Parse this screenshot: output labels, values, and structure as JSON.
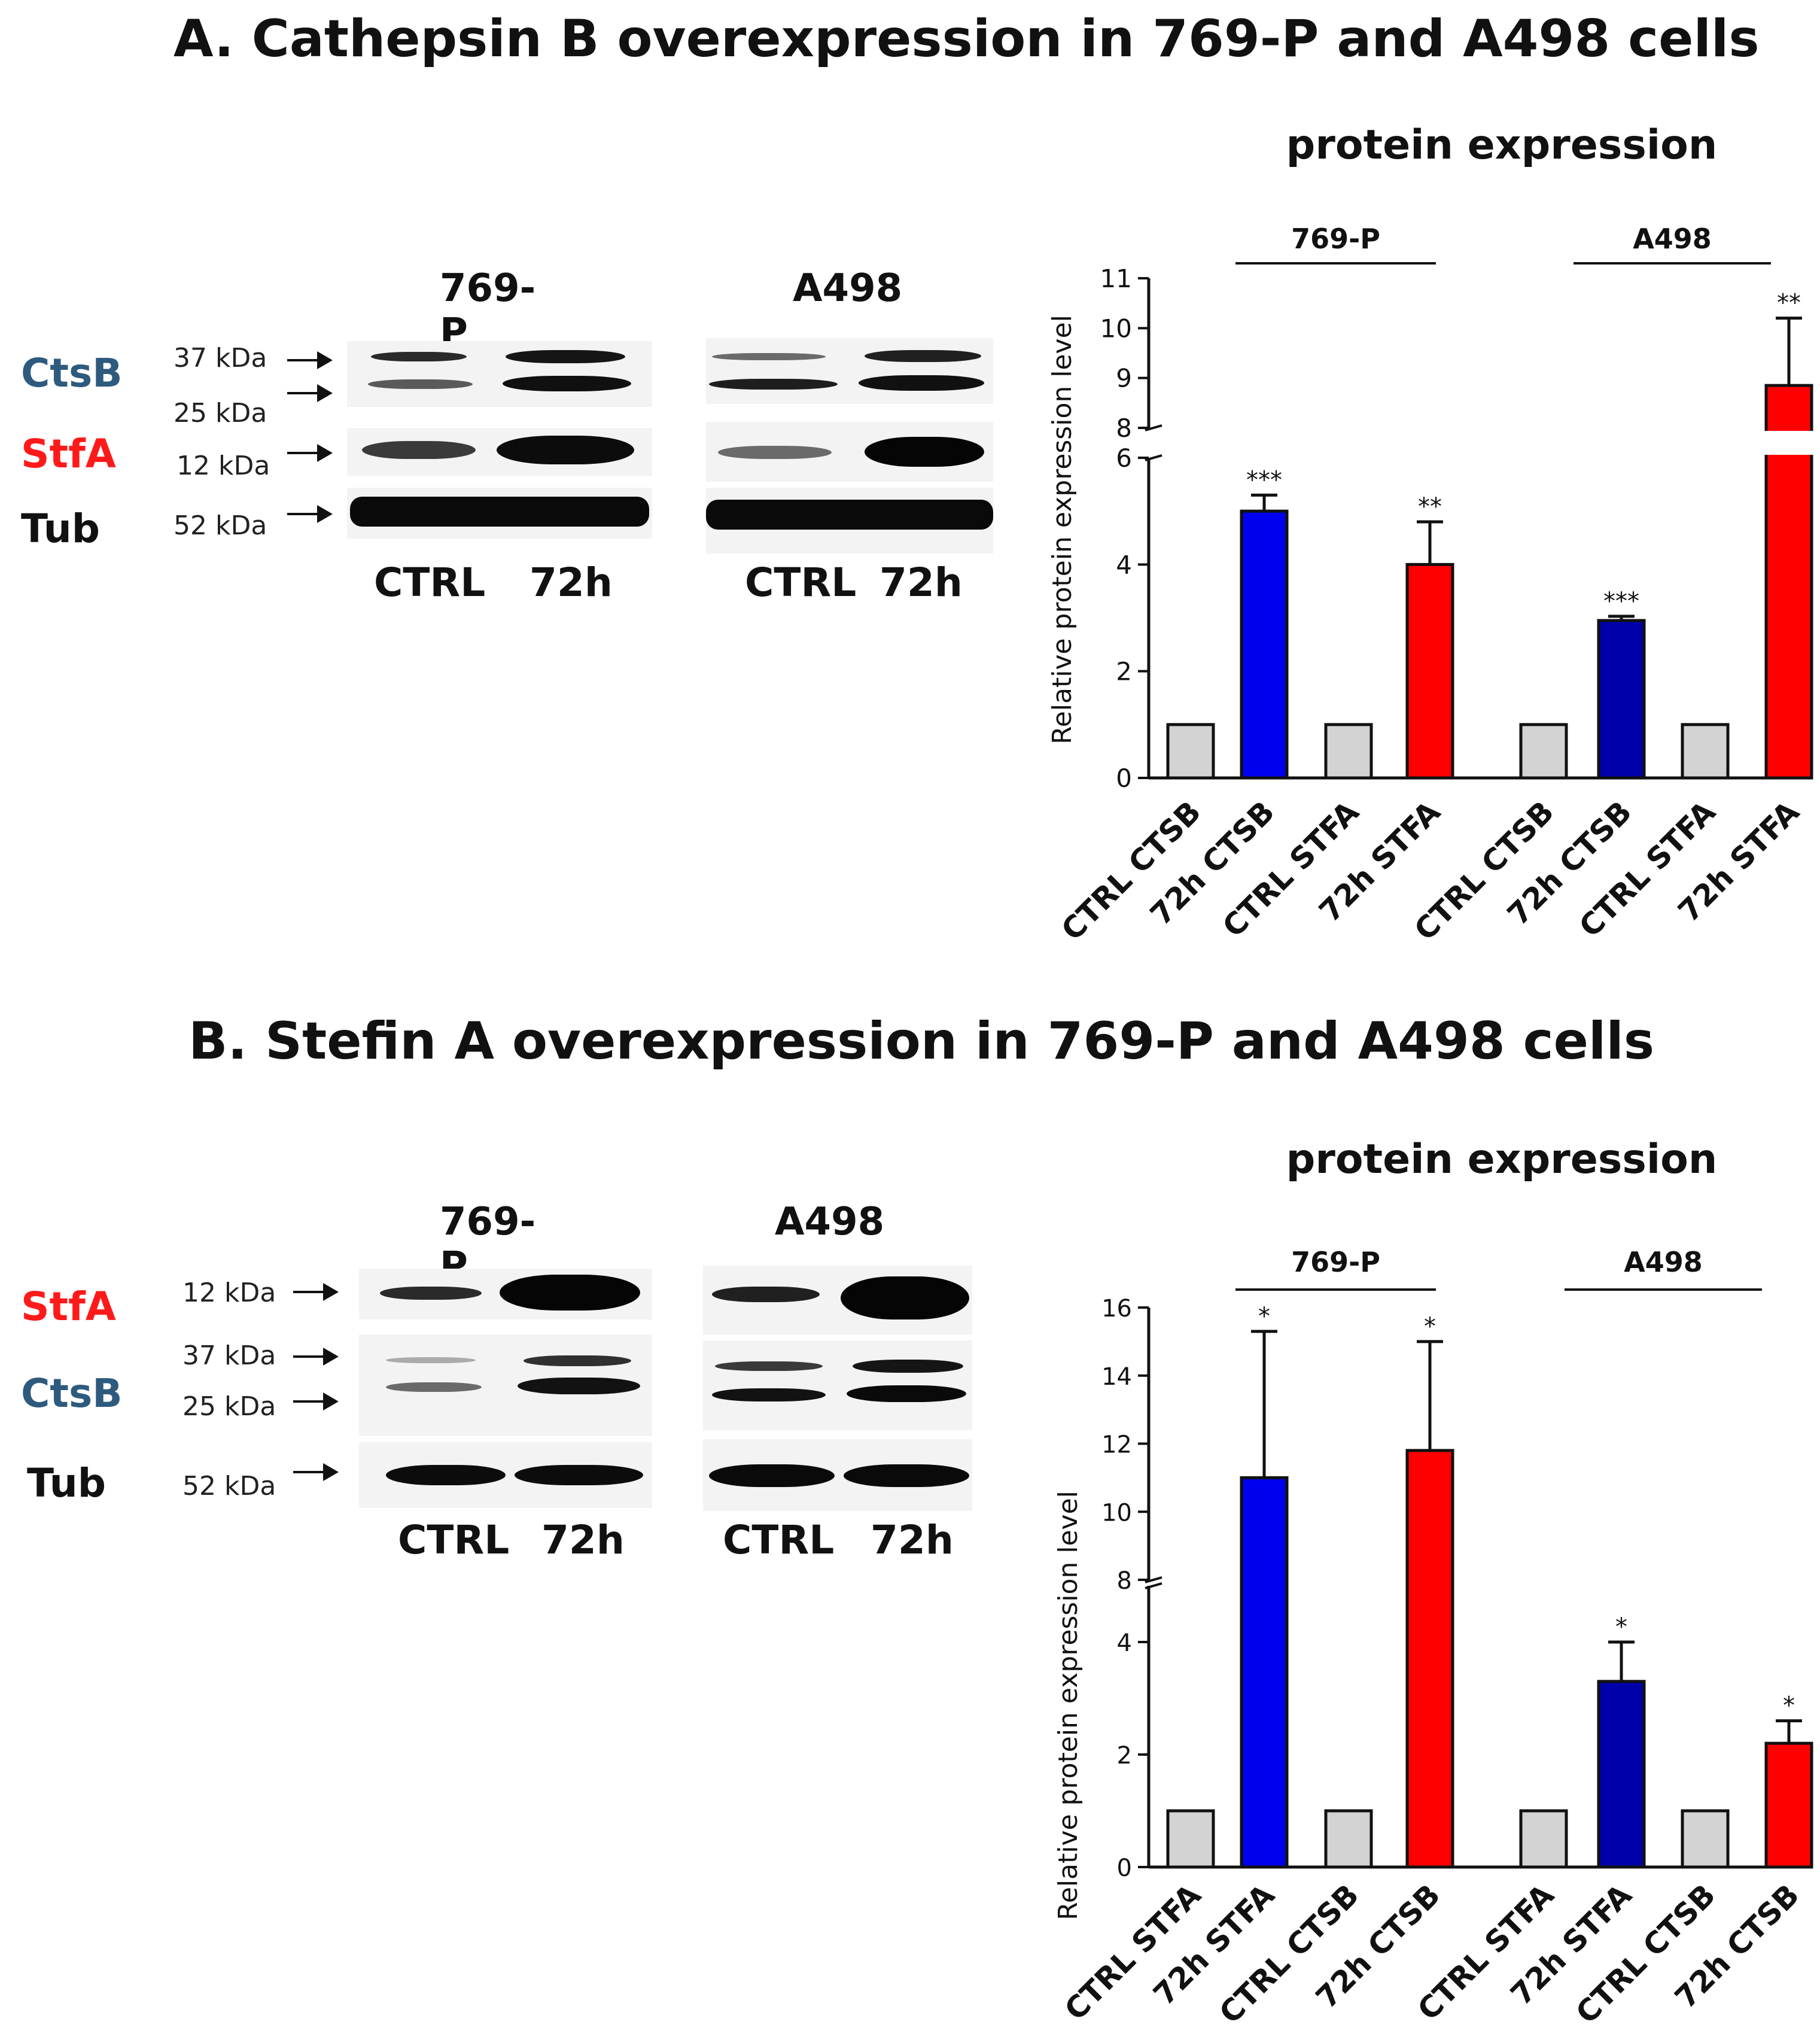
{
  "panel_a": {
    "title": "A. Cathepsin B overexpression in 769-P and A498 cells",
    "blot": {
      "cell_lines": [
        "769-P",
        "A498"
      ],
      "proteins": {
        "ctsb": "CtsB",
        "stfa": "StfA",
        "tub": "Tub"
      },
      "markers": [
        "37 kDa",
        "25 kDa",
        "12 kDa",
        "52 kDa"
      ],
      "lanes": [
        "CTRL",
        "72h"
      ]
    }
  },
  "panel_b": {
    "title": "B. Stefin A overexpression in 769-P and A498 cells",
    "blot": {
      "cell_lines": [
        "769-P",
        "A498"
      ],
      "proteins": {
        "stfa": "StfA",
        "ctsb": "CtsB",
        "tub": "Tub"
      },
      "markers": [
        "12 kDa",
        "37 kDa",
        "25 kDa",
        "52 kDa"
      ],
      "lanes": [
        "CTRL",
        "72h"
      ]
    }
  },
  "colors": {
    "ctsb_label": "#2e5a7e",
    "stfa_label": "#ff1a1a",
    "ctrl_bar": "#d3d3d3",
    "blue_bar": "#0000ee",
    "dark_blue_bar": "#0000aa",
    "red_bar": "#ff0000"
  },
  "chart_data": [
    {
      "type": "bar",
      "title": "protein expression",
      "ylabel": "Relative protein expression level",
      "groups": [
        "769-P",
        "A498"
      ],
      "categories": [
        "CTRL CTSB",
        "72h CTSB",
        "CTRL STFA",
        "72h STFA",
        "CTRL CTSB",
        "72h CTSB",
        "CTRL STFA",
        "72h STFA"
      ],
      "values": [
        1,
        5.0,
        1,
        4.0,
        1,
        2.95,
        1,
        8.85
      ],
      "errors": [
        0,
        0.3,
        0,
        0.8,
        0,
        0.08,
        0,
        1.35
      ],
      "significance": [
        "",
        "***",
        "",
        "**",
        "",
        "***",
        "",
        "**"
      ],
      "bar_colors": [
        "#d3d3d3",
        "#0000ee",
        "#d3d3d3",
        "#ff0000",
        "#d3d3d3",
        "#0000aa",
        "#d3d3d3",
        "#ff0000"
      ],
      "axis_break": {
        "lower": [
          0,
          6
        ],
        "upper": [
          8,
          11
        ]
      },
      "yticks_lower": [
        "0",
        "2",
        "4",
        "6"
      ],
      "yticks_upper": [
        "8",
        "9",
        "10",
        "11"
      ]
    },
    {
      "type": "bar",
      "title": "protein expression",
      "ylabel": "Relative protein expression level",
      "groups": [
        "769-P",
        "A498"
      ],
      "categories": [
        "CTRL STFA",
        "72h STFA",
        "CTRL CTSB",
        "72h CTSB",
        "CTRL STFA",
        "72h STFA",
        "CTRL CTSB",
        "72h CTSB"
      ],
      "values": [
        1,
        11.0,
        1,
        11.8,
        1,
        3.3,
        1,
        2.2
      ],
      "errors": [
        0,
        4.3,
        0,
        3.2,
        0,
        0.7,
        0,
        0.4
      ],
      "significance": [
        "",
        "*",
        "",
        "*",
        "",
        "*",
        "",
        "*"
      ],
      "bar_colors": [
        "#d3d3d3",
        "#0000ee",
        "#d3d3d3",
        "#ff0000",
        "#d3d3d3",
        "#0000aa",
        "#d3d3d3",
        "#ff0000"
      ],
      "axis_break": {
        "lower": [
          0,
          5
        ],
        "upper": [
          8,
          16
        ]
      },
      "yticks_lower": [
        "0",
        "2",
        "4"
      ],
      "yticks_upper": [
        "8",
        "10",
        "12",
        "14",
        "16"
      ]
    }
  ]
}
